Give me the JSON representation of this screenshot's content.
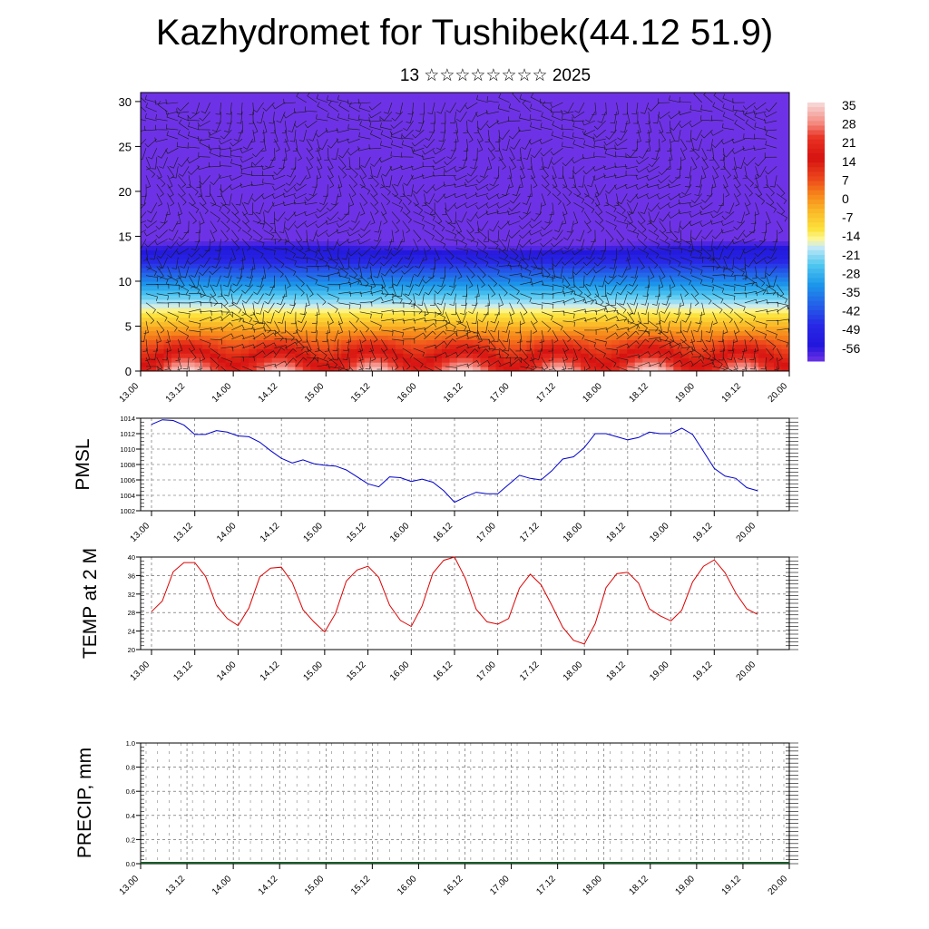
{
  "header": {
    "title": "Kazhydromet for Tushibek(44.12 51.9)",
    "subtitle": "13 ☆☆☆☆☆☆☆☆ 2025"
  },
  "time_labels": [
    "13.00",
    "13.12",
    "14.00",
    "14.12",
    "15.00",
    "15.12",
    "16.00",
    "16.12",
    "17.00",
    "17.12",
    "18.00",
    "18.12",
    "19.00",
    "19.12",
    "20.00"
  ],
  "chart_data": [
    {
      "type": "heatmap",
      "name": "vertical temperature cross-section with wind barbs",
      "x_tick_labels": [
        "13.00",
        "13.12",
        "14.00",
        "14.12",
        "15.00",
        "15.12",
        "16.00",
        "16.12",
        "17.00",
        "17.12",
        "18.00",
        "18.12",
        "19.00",
        "19.12",
        "20.00"
      ],
      "y_ticks": [
        0,
        5,
        10,
        15,
        20,
        25,
        30
      ],
      "ylim": [
        0,
        31
      ],
      "colorbar_labels": [
        "35",
        "28",
        "21",
        "14",
        "7",
        "0",
        "-7",
        "-14",
        "-21",
        "-28",
        "-35",
        "-42",
        "-49",
        "-56"
      ],
      "colorbar_colors": [
        "#f7dcdc",
        "#ee3a28",
        "#e01010",
        "#d81a10",
        "#ee5020",
        "#f8901c",
        "#fcc830",
        "#fdf48c",
        "#c8eaf6",
        "#40c0f0",
        "#1e8ee8",
        "#2050e8",
        "#2a1ae8",
        "#6e2ae8"
      ],
      "profile_description": "warm near surface with diurnal cycle, cooling with height to about -56 near level 25, warmer above"
    },
    {
      "type": "line",
      "ylabel": "PMSL",
      "ylim": [
        1002,
        1014
      ],
      "yticks": [
        1002,
        1004,
        1006,
        1008,
        1010,
        1012,
        1014
      ],
      "x_tick_labels": [
        "13.00",
        "13.12",
        "14.00",
        "14.12",
        "15.00",
        "15.12",
        "16.00",
        "16.12",
        "17.00",
        "17.12",
        "18.00",
        "18.12",
        "19.00",
        "19.12",
        "20.00"
      ],
      "color": "#0000cc",
      "x_hours": [
        0,
        3,
        6,
        9,
        12,
        15,
        18,
        21,
        24,
        27,
        30,
        33,
        36,
        39,
        42,
        45,
        48,
        51,
        54,
        57,
        60,
        63,
        66,
        69,
        72,
        75,
        78,
        81,
        84,
        87,
        90,
        93,
        96,
        99,
        102,
        105,
        108,
        111,
        114,
        117,
        120,
        123,
        126,
        129,
        132,
        135,
        138,
        141,
        144,
        147,
        150,
        153,
        156,
        159,
        162,
        165,
        168
      ],
      "values": [
        1013.2,
        1013.8,
        1013.7,
        1013.1,
        1011.9,
        1011.9,
        1012.4,
        1012.2,
        1011.7,
        1011.6,
        1010.9,
        1009.8,
        1008.8,
        1008.2,
        1008.6,
        1008.1,
        1007.9,
        1007.8,
        1007.3,
        1006.4,
        1005.5,
        1005.1,
        1006.4,
        1006.3,
        1005.8,
        1006.1,
        1005.7,
        1004.6,
        1003.1,
        1003.8,
        1004.4,
        1004.2,
        1004.2,
        1005.4,
        1006.6,
        1006.2,
        1006.0,
        1007.2,
        1008.7,
        1009.0,
        1010.2,
        1012.0,
        1012.0,
        1011.6,
        1011.2,
        1011.5,
        1012.2,
        1012.0,
        1012.0,
        1012.7,
        1011.9,
        1009.7,
        1007.5,
        1006.5,
        1006.2,
        1005.0,
        1004.6
      ]
    },
    {
      "type": "line",
      "ylabel": "TEMP at 2 M",
      "ylim": [
        20,
        40
      ],
      "yticks": [
        20,
        24,
        28,
        32,
        36,
        40
      ],
      "x_tick_labels": [
        "13.00",
        "13.12",
        "14.00",
        "14.12",
        "15.00",
        "15.12",
        "16.00",
        "16.12",
        "17.00",
        "17.12",
        "18.00",
        "18.12",
        "19.00",
        "19.12",
        "20.00"
      ],
      "color": "#dd0000",
      "x_hours": [
        0,
        3,
        6,
        9,
        12,
        15,
        18,
        21,
        24,
        27,
        30,
        33,
        36,
        39,
        42,
        45,
        48,
        51,
        54,
        57,
        60,
        63,
        66,
        69,
        72,
        75,
        78,
        81,
        84,
        87,
        90,
        93,
        96,
        99,
        102,
        105,
        108,
        111,
        114,
        117,
        120,
        123,
        126,
        129,
        132,
        135,
        138,
        141,
        144,
        147,
        150,
        153,
        156,
        159,
        162,
        165,
        168
      ],
      "values": [
        28.2,
        30.5,
        36.8,
        38.8,
        38.8,
        35.8,
        29.5,
        26.7,
        25.2,
        29.0,
        35.7,
        37.6,
        37.8,
        34.5,
        28.6,
        26.0,
        23.8,
        27.8,
        34.8,
        37.2,
        38.0,
        35.6,
        29.6,
        26.3,
        25.0,
        29.4,
        36.5,
        39.3,
        40.0,
        35.4,
        28.7,
        26.0,
        25.5,
        26.7,
        33.3,
        36.3,
        34.0,
        29.5,
        24.8,
        22.0,
        21.2,
        25.6,
        33.4,
        36.4,
        36.7,
        34.4,
        28.8,
        27.3,
        26.2,
        28.5,
        34.6,
        38.0,
        39.4,
        36.6,
        32.2,
        28.8,
        27.6
      ]
    },
    {
      "type": "bar",
      "ylabel": "PRECIP, mm",
      "ylim": [
        0.0,
        1.0
      ],
      "yticks": [
        "0.0",
        "0.2",
        "0.4",
        "0.6",
        "0.8",
        "1.0"
      ],
      "x_tick_labels": [
        "13.00",
        "13.12",
        "14.00",
        "14.12",
        "15.00",
        "15.12",
        "16.00",
        "16.12",
        "17.00",
        "17.12",
        "18.00",
        "18.12",
        "19.00",
        "19.12",
        "20.00"
      ],
      "color": "#1a5a2a",
      "values": []
    }
  ]
}
